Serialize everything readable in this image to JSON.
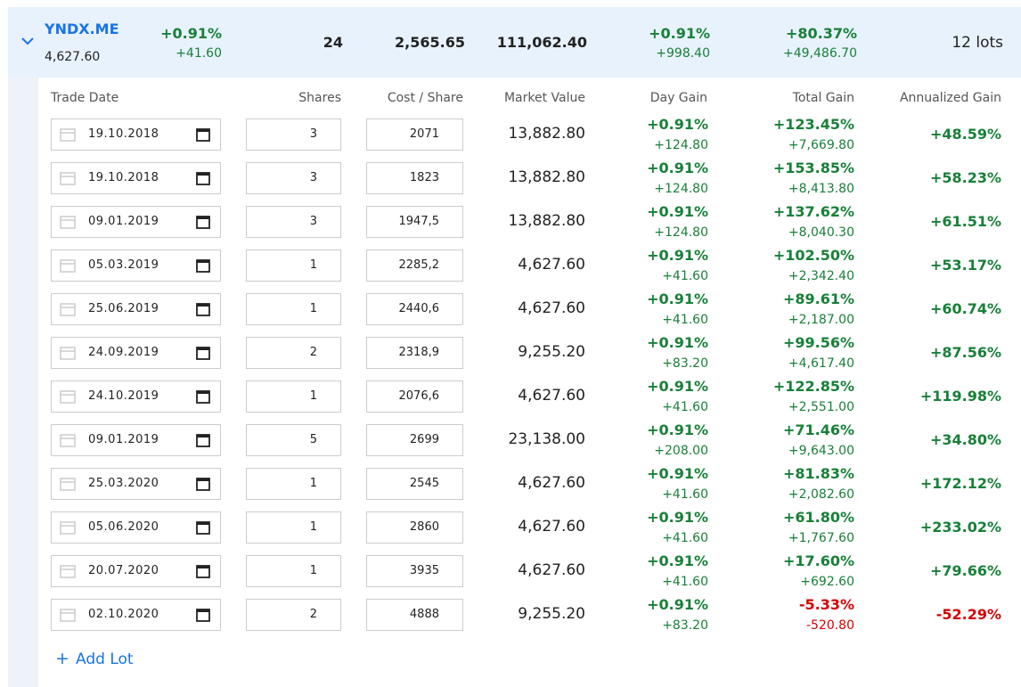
{
  "summary": {
    "symbol": "YNDX.ME",
    "price": "4,627.60",
    "change_pct": "+0.91%",
    "change": "+41.60",
    "shares": "24",
    "cost_per_share": "2,565.65",
    "market_value": "111,062.40",
    "day_gain_pct": "+0.91%",
    "day_gain": "+998.40",
    "total_gain_pct": "+80.37%",
    "total_gain": "+49,486.70",
    "lots": "12 lots"
  },
  "headers": [
    "Trade Date",
    "Shares",
    "Cost / Share",
    "Market Value",
    "Day Gain",
    "Total Gain",
    "Annualized Gain"
  ],
  "rows": [
    [
      "19.10.2018",
      "3",
      "2071",
      "13,882.80",
      "+0.91%",
      "+124.80",
      "+123.45%",
      "+7,669.80",
      "+48.59%"
    ],
    [
      "19.10.2018",
      "3",
      "1823",
      "13,882.80",
      "+0.91%",
      "+124.80",
      "+153.85%",
      "+8,413.80",
      "+58.23%"
    ],
    [
      "09.01.2019",
      "3",
      "1947,5",
      "13,882.80",
      "+0.91%",
      "+124.80",
      "+137.62%",
      "+8,040.30",
      "+61.51%"
    ],
    [
      "05.03.2019",
      "1",
      "2285,2",
      "4,627.60",
      "+0.91%",
      "+41.60",
      "+102.50%",
      "+2,342.40",
      "+53.17%"
    ],
    [
      "25.06.2019",
      "1",
      "2440,6",
      "4,627.60",
      "+0.91%",
      "+41.60",
      "+89.61%",
      "+2,187.00",
      "+60.74%"
    ],
    [
      "24.09.2019",
      "2",
      "2318,9",
      "9,255.20",
      "+0.91%",
      "+83.20",
      "+99.56%",
      "+4,617.40",
      "+87.56%"
    ],
    [
      "24.10.2019",
      "1",
      "2076,6",
      "4,627.60",
      "+0.91%",
      "+41.60",
      "+122.85%",
      "+2,551.00",
      "+119.98%"
    ],
    [
      "09.01.2019",
      "5",
      "2699",
      "23,138.00",
      "+0.91%",
      "+208.00",
      "+71.46%",
      "+9,643.00",
      "+34.80%"
    ],
    [
      "25.03.2020",
      "1",
      "2545",
      "4,627.60",
      "+0.91%",
      "+41.60",
      "+81.83%",
      "+2,082.60",
      "+172.12%"
    ],
    [
      "05.06.2020",
      "1",
      "2860",
      "4,627.60",
      "+0.91%",
      "+41.60",
      "+61.80%",
      "+1,767.60",
      "+233.02%"
    ],
    [
      "20.07.2020",
      "1",
      "3935",
      "4,627.60",
      "+0.91%",
      "+41.60",
      "+17.60%",
      "+692.60",
      "+79.66%"
    ],
    [
      "02.10.2020",
      "2",
      "4888",
      "9,255.20",
      "+0.91%",
      "+83.20",
      "-5.33%",
      "-520.80",
      "-52.29%"
    ]
  ],
  "add_lot": "Add Lot"
}
